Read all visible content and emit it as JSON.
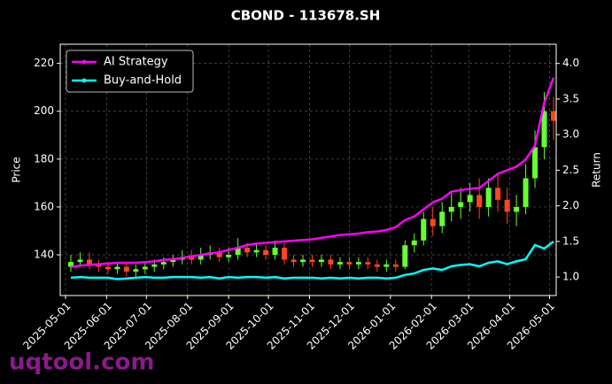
{
  "chart_data": {
    "type": "candlestick",
    "title": "CBOND - 113678.SH",
    "x": [
      "2025-05-05",
      "2025-05-12",
      "2025-05-19",
      "2025-05-26",
      "2025-06-02",
      "2025-06-09",
      "2025-06-16",
      "2025-06-23",
      "2025-06-30",
      "2025-07-07",
      "2025-07-14",
      "2025-07-21",
      "2025-07-28",
      "2025-08-04",
      "2025-08-11",
      "2025-08-18",
      "2025-08-25",
      "2025-09-01",
      "2025-09-08",
      "2025-09-15",
      "2025-09-22",
      "2025-09-29",
      "2025-10-06",
      "2025-10-13",
      "2025-10-20",
      "2025-10-27",
      "2025-11-03",
      "2025-11-10",
      "2025-11-17",
      "2025-11-24",
      "2025-12-01",
      "2025-12-08",
      "2025-12-15",
      "2025-12-22",
      "2025-12-29",
      "2026-01-05",
      "2026-01-12",
      "2026-01-19",
      "2026-01-26",
      "2026-02-02",
      "2026-02-09",
      "2026-02-16",
      "2026-02-23",
      "2026-03-02",
      "2026-03-09",
      "2026-03-16",
      "2026-03-23",
      "2026-03-30",
      "2026-04-06",
      "2026-04-13",
      "2026-04-20",
      "2026-04-27",
      "2026-05-04"
    ],
    "open": [
      135,
      137,
      138,
      136,
      135,
      134,
      135,
      133,
      134,
      135,
      136,
      137,
      138,
      139,
      138,
      140,
      141,
      139,
      140,
      143,
      141,
      142,
      140,
      143,
      138,
      137,
      138,
      137,
      138,
      136,
      137,
      136,
      137,
      136,
      135,
      136,
      135,
      144,
      146,
      155,
      152,
      158,
      160,
      162,
      165,
      160,
      168,
      163,
      158,
      160,
      172,
      185,
      200
    ],
    "high": [
      140,
      141,
      141,
      138,
      137,
      137,
      137,
      136,
      137,
      138,
      139,
      140,
      142,
      142,
      143,
      144,
      143,
      143,
      147,
      145,
      145,
      144,
      146,
      145,
      140,
      140,
      140,
      140,
      140,
      139,
      139,
      139,
      139,
      138,
      138,
      138,
      146,
      149,
      158,
      160,
      162,
      166,
      168,
      170,
      172,
      172,
      174,
      168,
      165,
      178,
      192,
      208,
      206
    ],
    "low": [
      133,
      135,
      134,
      133,
      132,
      132,
      131,
      131,
      132,
      133,
      134,
      135,
      136,
      136,
      136,
      138,
      137,
      137,
      138,
      139,
      139,
      138,
      138,
      136,
      135,
      135,
      135,
      135,
      134,
      134,
      134,
      134,
      134,
      133,
      133,
      133,
      134,
      141,
      144,
      148,
      149,
      154,
      155,
      158,
      155,
      156,
      158,
      153,
      152,
      157,
      168,
      180,
      188
    ],
    "close": [
      137,
      138,
      136,
      135,
      134,
      135,
      133,
      134,
      135,
      136,
      137,
      138,
      139,
      138,
      140,
      141,
      139,
      140,
      143,
      141,
      142,
      140,
      143,
      138,
      137,
      138,
      137,
      138,
      136,
      137,
      136,
      137,
      136,
      135,
      136,
      135,
      144,
      146,
      155,
      152,
      158,
      160,
      162,
      165,
      160,
      168,
      163,
      158,
      160,
      172,
      185,
      200,
      196
    ],
    "up_color": "#66ff33",
    "down_color": "#ff4422",
    "series": [
      {
        "name": "AI Strategy",
        "color": "#ff00ff",
        "axis": "y2",
        "values": [
          1.14,
          1.16,
          1.17,
          1.18,
          1.19,
          1.2,
          1.2,
          1.2,
          1.21,
          1.22,
          1.24,
          1.25,
          1.27,
          1.29,
          1.31,
          1.33,
          1.35,
          1.38,
          1.41,
          1.45,
          1.47,
          1.48,
          1.49,
          1.5,
          1.51,
          1.52,
          1.53,
          1.55,
          1.57,
          1.59,
          1.6,
          1.61,
          1.63,
          1.64,
          1.66,
          1.7,
          1.8,
          1.85,
          1.95,
          2.05,
          2.1,
          2.2,
          2.22,
          2.24,
          2.25,
          2.35,
          2.45,
          2.5,
          2.55,
          2.65,
          2.85,
          3.45,
          3.8
        ]
      },
      {
        "name": "Buy-and-Hold",
        "color": "#00ffff",
        "axis": "y2",
        "values": [
          0.99,
          1.0,
          0.99,
          0.99,
          0.99,
          0.97,
          0.98,
          0.99,
          1.0,
          0.99,
          0.99,
          1.0,
          1.0,
          1.0,
          0.99,
          1.0,
          0.98,
          1.0,
          0.99,
          1.0,
          1.0,
          0.99,
          1.0,
          0.98,
          0.99,
          0.99,
          0.99,
          0.98,
          0.99,
          0.98,
          0.99,
          0.98,
          0.99,
          0.99,
          0.98,
          0.99,
          1.03,
          1.05,
          1.1,
          1.12,
          1.1,
          1.15,
          1.17,
          1.18,
          1.15,
          1.2,
          1.22,
          1.18,
          1.22,
          1.25,
          1.45,
          1.4,
          1.5
        ]
      }
    ],
    "xlim": [
      "2025-04-27",
      "2026-05-06"
    ],
    "xticks": [
      "2025-05-01",
      "2025-06-01",
      "2025-07-01",
      "2025-08-01",
      "2025-09-01",
      "2025-10-01",
      "2025-11-01",
      "2025-12-01",
      "2026-01-01",
      "2026-02-01",
      "2026-03-01",
      "2026-04-01",
      "2026-05-01"
    ],
    "ylim": [
      123,
      228
    ],
    "yticks": [
      140,
      160,
      180,
      200,
      220
    ],
    "y2lim": [
      0.74,
      4.27
    ],
    "y2ticks": [
      {
        "value": 1,
        "label": "1.0"
      },
      1.5,
      {
        "value": 2,
        "label": "2.0"
      },
      2.5,
      {
        "value": 3,
        "label": "3.0"
      },
      3.5,
      {
        "value": 4,
        "label": "4.0"
      }
    ],
    "ylabel": "Price",
    "y2label": "Return",
    "grid": true,
    "legend": "upper left"
  },
  "watermark": "uqtool.com"
}
